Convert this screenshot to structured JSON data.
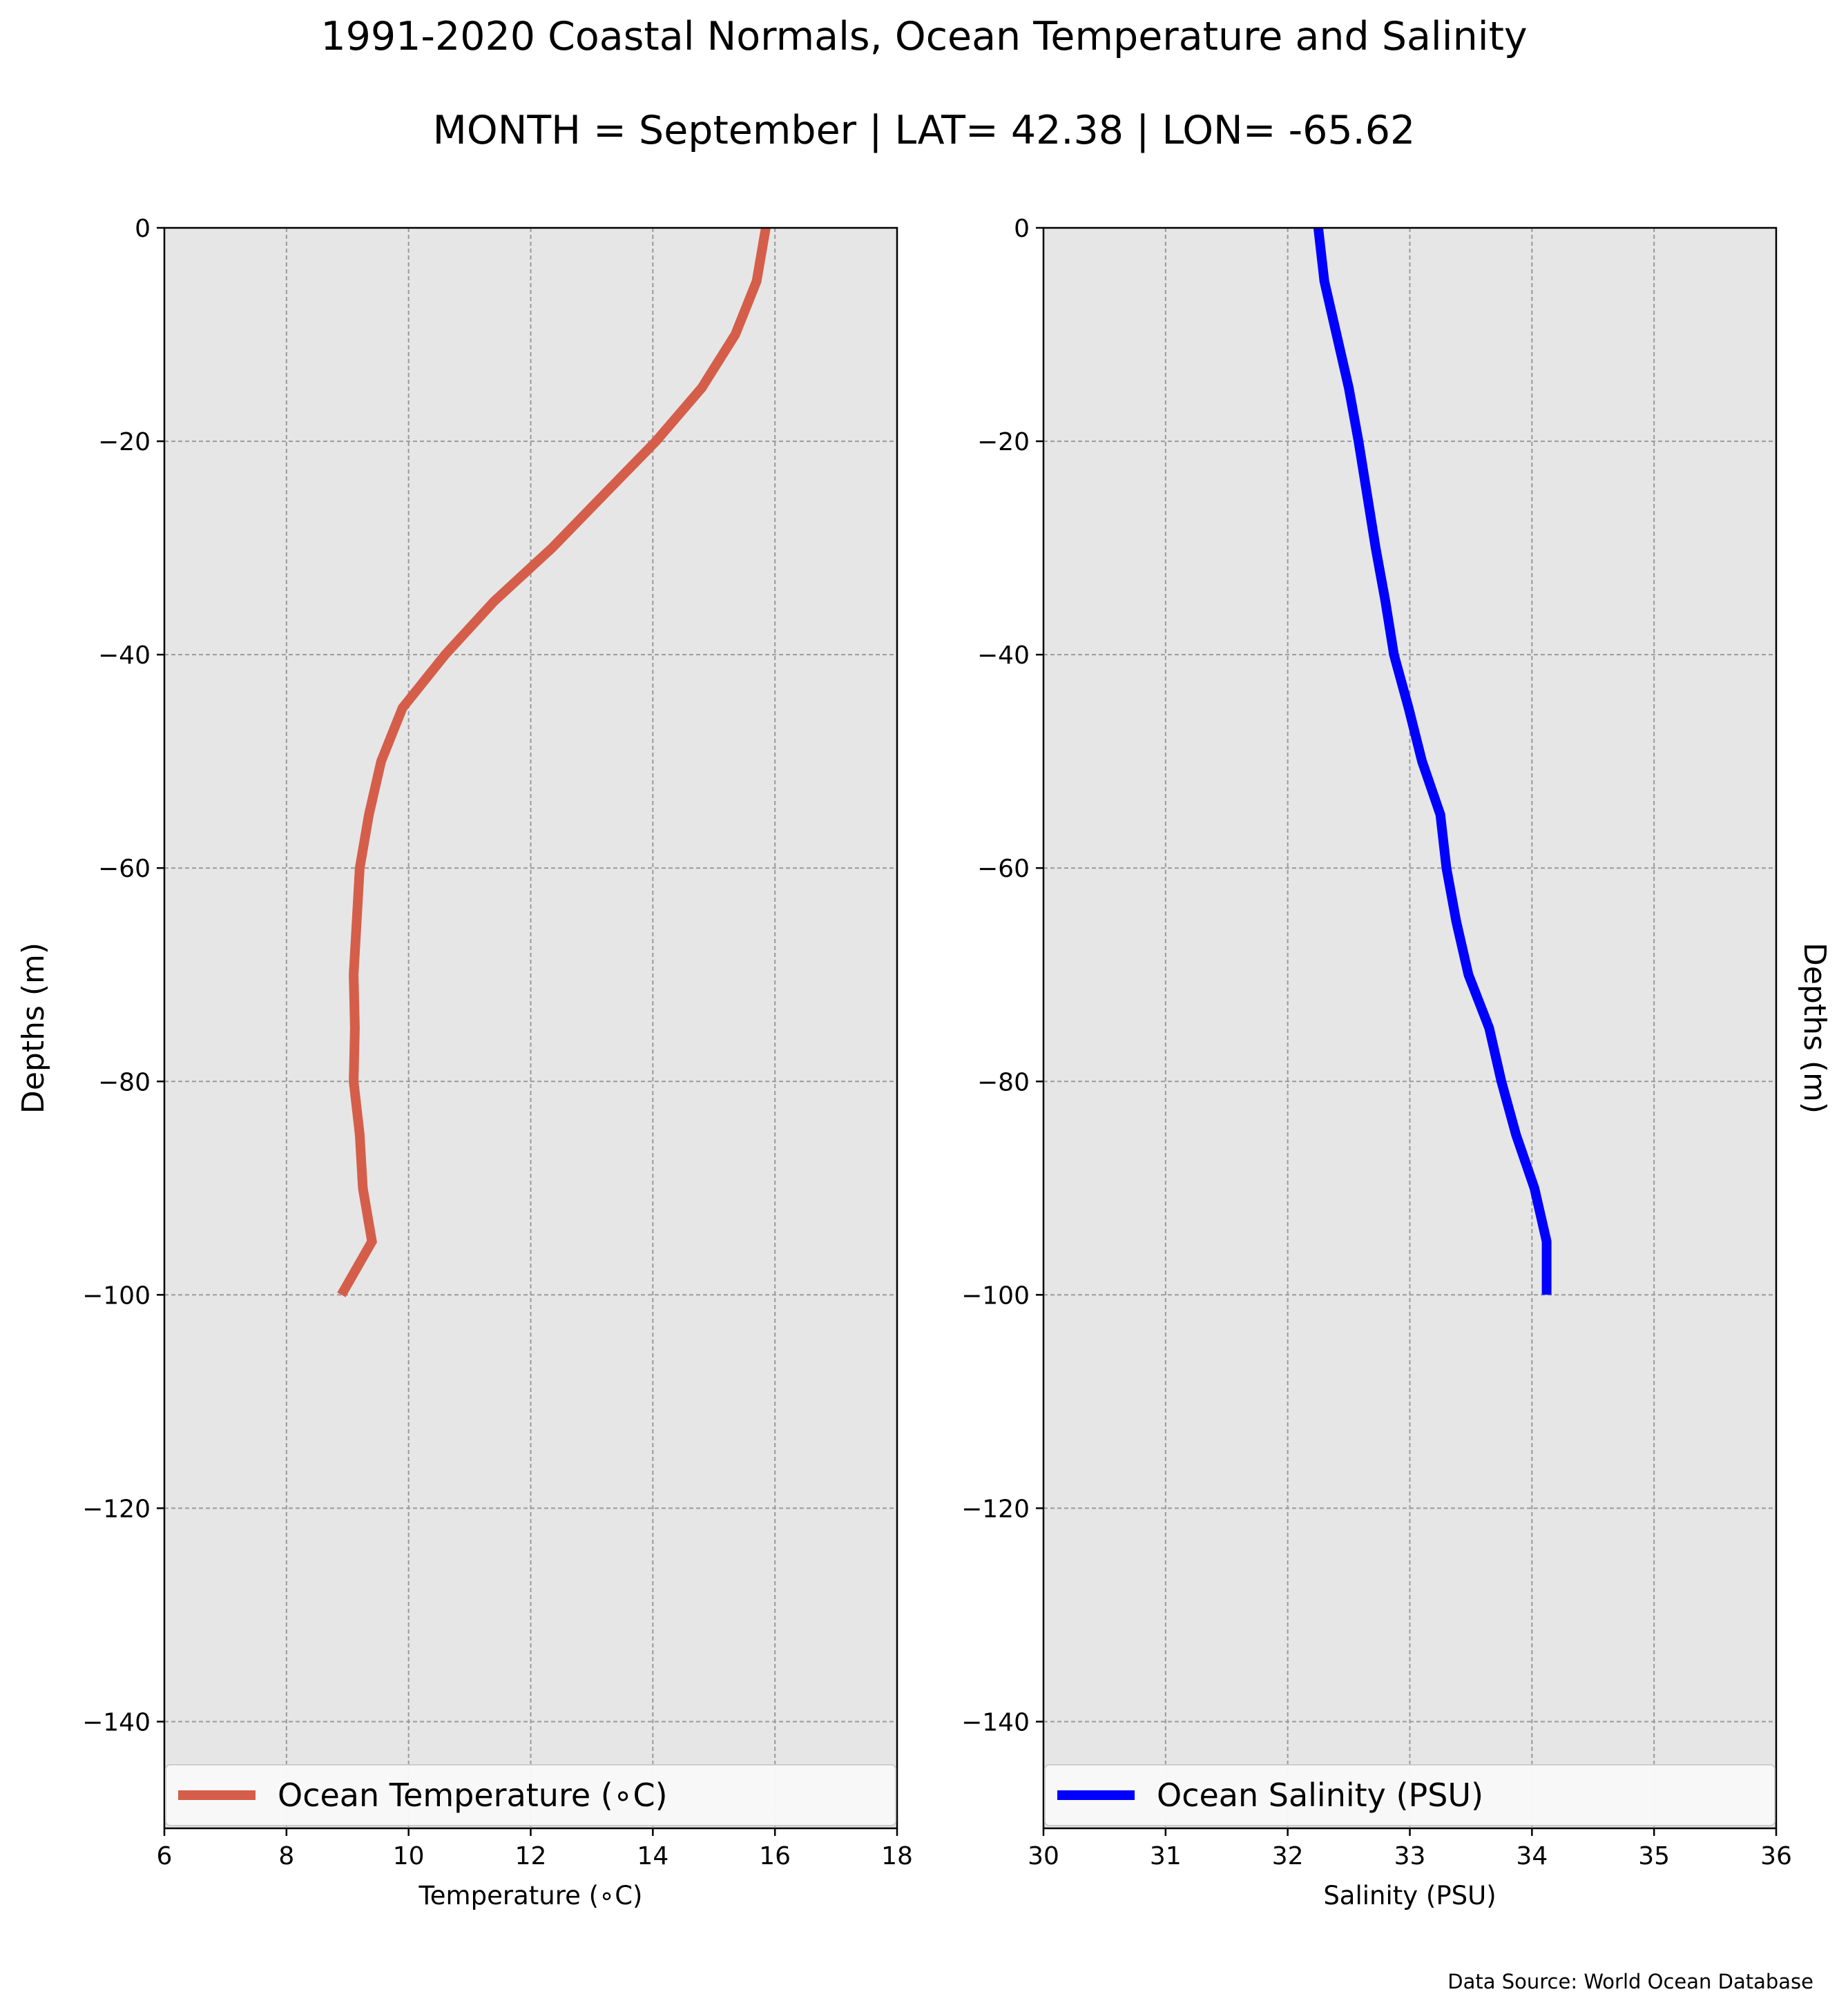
{
  "title": "1991-2020 Coastal Normals, Ocean Temperature and Salinity",
  "subtitle": "MONTH = September | LAT= 42.38 | LON= -65.62",
  "source": "Data Source: World Ocean Database",
  "chart_data": [
    {
      "type": "line",
      "orientation": "vertical-profile",
      "xlabel": "Temperature ($^\\circ$C)",
      "xlabel_display": "Temperature (∘C)",
      "ylabel": "Depths (m)",
      "xlim": [
        6,
        18
      ],
      "ylim": [
        -150,
        0
      ],
      "xticks": [
        6,
        8,
        10,
        12,
        14,
        16,
        18
      ],
      "yticks": [
        0,
        -20,
        -40,
        -60,
        -80,
        -100,
        -120,
        -140
      ],
      "ytick_labels": [
        "0",
        "−20",
        "−40",
        "−60",
        "−80",
        "−100",
        "−120",
        "−140"
      ],
      "grid": true,
      "background": "#e6e6e6",
      "legend_position": "lower-center",
      "series": [
        {
          "name": "Ocean Temperature (∘C)",
          "color": "#d55e4a",
          "x": [
            15.85,
            15.7,
            15.35,
            14.8,
            14.05,
            13.2,
            12.35,
            11.4,
            10.6,
            9.9,
            9.55,
            9.35,
            9.2,
            9.15,
            9.1,
            9.12,
            9.1,
            9.2,
            9.25,
            9.4,
            8.9
          ],
          "y": [
            0,
            -5,
            -10,
            -15,
            -20,
            -25,
            -30,
            -35,
            -40,
            -45,
            -50,
            -55,
            -60,
            -65,
            -70,
            -75,
            -80,
            -85,
            -90,
            -95,
            -100
          ]
        }
      ]
    },
    {
      "type": "line",
      "orientation": "vertical-profile",
      "xlabel": "Salinity (PSU)",
      "ylabel": "Depths (m)",
      "xlim": [
        30,
        36
      ],
      "ylim": [
        -150,
        0
      ],
      "xticks": [
        30,
        31,
        32,
        33,
        34,
        35,
        36
      ],
      "yticks": [
        0,
        -20,
        -40,
        -60,
        -80,
        -100,
        -120,
        -140
      ],
      "ytick_labels": [
        "0",
        "−20",
        "−40",
        "−60",
        "−80",
        "−100",
        "−120",
        "−140"
      ],
      "grid": true,
      "background": "#e6e6e6",
      "legend_position": "lower-center",
      "series": [
        {
          "name": "Ocean Salinity (PSU)",
          "color": "#0000ff",
          "x": [
            32.25,
            32.3,
            32.4,
            32.5,
            32.58,
            32.65,
            32.72,
            32.8,
            32.87,
            32.99,
            33.1,
            33.25,
            33.3,
            33.38,
            33.48,
            33.65,
            33.75,
            33.87,
            34.02,
            34.12,
            34.12
          ],
          "y": [
            0,
            -5,
            -10,
            -15,
            -20,
            -25,
            -30,
            -35,
            -40,
            -45,
            -50,
            -55,
            -60,
            -65,
            -70,
            -75,
            -80,
            -85,
            -90,
            -95,
            -100
          ]
        }
      ]
    }
  ]
}
